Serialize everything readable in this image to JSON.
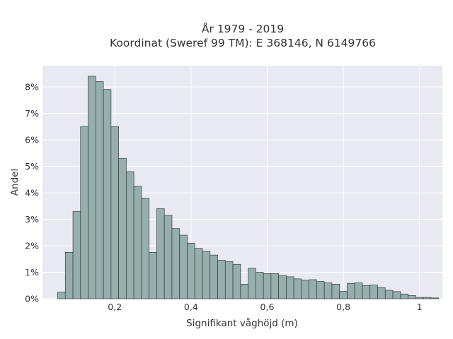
{
  "chart_data": {
    "type": "bar",
    "title_lines": [
      "År 1979 - 2019",
      "Koordinat (Sweref 99 TM): E 368146, N 6149766"
    ],
    "xlabel": "Signifikant våghöjd (m)",
    "ylabel": "Andel",
    "xlim": [
      0.01,
      1.06
    ],
    "ylim": [
      0,
      8.8
    ],
    "x_ticks": [
      0.2,
      0.4,
      0.6,
      0.8,
      1.0
    ],
    "x_tick_labels": [
      "0,2",
      "0,4",
      "0,6",
      "0,8",
      "1"
    ],
    "y_ticks": [
      0,
      1,
      2,
      3,
      4,
      5,
      6,
      7,
      8
    ],
    "y_tick_labels": [
      "0%",
      "1%",
      "2%",
      "3%",
      "4%",
      "5%",
      "6%",
      "7%",
      "8%"
    ],
    "grid": true,
    "bin_start": 0.05,
    "bin_width": 0.02,
    "values": [
      0.25,
      1.75,
      3.3,
      6.5,
      8.4,
      8.2,
      7.9,
      6.5,
      5.3,
      4.8,
      4.25,
      3.8,
      1.75,
      3.4,
      3.15,
      2.65,
      2.4,
      2.1,
      1.9,
      1.8,
      1.65,
      1.45,
      1.4,
      1.3,
      0.55,
      1.15,
      1.0,
      0.95,
      0.95,
      0.88,
      0.83,
      0.75,
      0.7,
      0.72,
      0.65,
      0.6,
      0.55,
      0.28,
      0.58,
      0.6,
      0.5,
      0.52,
      0.42,
      0.32,
      0.27,
      0.18,
      0.12,
      0.05,
      0.05,
      0.03
    ],
    "colors": {
      "bar_fill": "#96afac",
      "bar_stroke": "#2f3b3a",
      "plot_bg": "#e9e9f2",
      "grid": "#ffffff",
      "text": "#333333"
    }
  }
}
